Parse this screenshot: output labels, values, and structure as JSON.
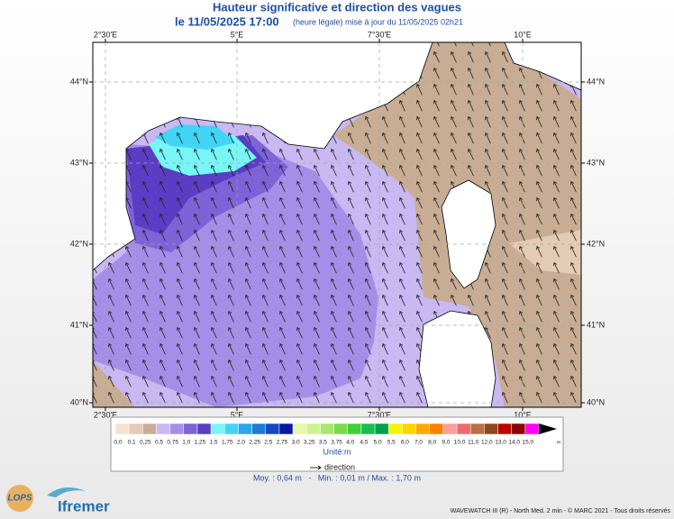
{
  "header": {
    "title": "Hauteur significative et direction des vagues",
    "date": "le 11/05/2025 17:00",
    "update": "(heure légale) mise à jour du 11/05/2025 02h21"
  },
  "map": {
    "lon_labels": [
      "2°30'E",
      "5°E",
      "7°30'E",
      "10°E"
    ],
    "lat_labels": [
      "44°N",
      "43°N",
      "42°N",
      "41°N",
      "40°N"
    ]
  },
  "legend": {
    "colors": [
      "#f6e2d2",
      "#e6cbb4",
      "#c8ad94",
      "#c9b8f2",
      "#a58ee8",
      "#7d62d8",
      "#5a3dc4",
      "#78f5f5",
      "#42d4f5",
      "#2aa6ea",
      "#1f7ad8",
      "#1548c2",
      "#0a1a9e",
      "#e8f7a8",
      "#cff290",
      "#a8e86c",
      "#78dc48",
      "#3cd23c",
      "#14bf50",
      "#00a050",
      "#f5f500",
      "#ffd400",
      "#ffaa00",
      "#ff8000",
      "#ff9c9c",
      "#f06a6a",
      "#b87048",
      "#8c4a1e",
      "#c00000",
      "#8c0000",
      "#ff00ff"
    ],
    "labels": [
      "0,0",
      "0,1",
      "0,25",
      "0,5",
      "0,75",
      "1,0",
      "1,25",
      "1,5",
      "1,75",
      "2,0",
      "2,25",
      "2,5",
      "2,75",
      "3,0",
      "3,25",
      "3,5",
      "3,75",
      "4,0",
      "4,5",
      "5,0",
      "5,5",
      "6,0",
      "7,0",
      "8,0",
      "9,0",
      "10,0",
      "11,0",
      "12,0",
      "13,0",
      "14,0",
      "15,0",
      "∞"
    ],
    "unit": "Unité:m",
    "direction": "direction"
  },
  "stats": "Moy. : 0,64 m   -   Min. : 0,01 m / Max. : 1,70 m",
  "footer": {
    "credit": "WAVEWATCH III (R) - North Med. 2 min - © MARC 2021 - Tous droits réservés",
    "logo_lops": "LOPS",
    "logo_ifremer": "Ifremer"
  }
}
